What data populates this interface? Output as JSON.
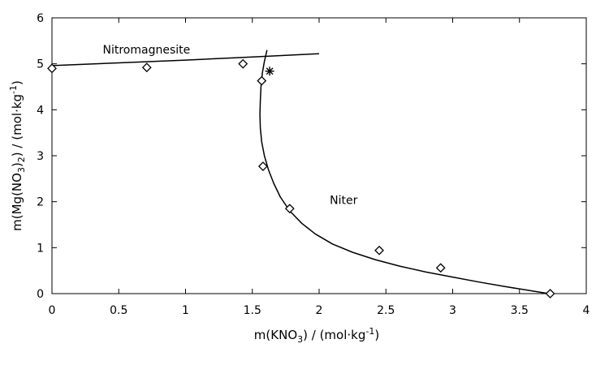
{
  "chart_data": {
    "type": "scatter",
    "title": "",
    "xlabel": {
      "main": "m(KNO",
      "sub": "3",
      "tail": ") / (mol·kg",
      "sup": "-1",
      "end": ")"
    },
    "ylabel": {
      "main": "m(Mg(NO",
      "sub": "3",
      "mid": ")",
      "sub2": "2",
      "tail": ") / (mol·kg",
      "sup": "-1",
      "end": ")"
    },
    "xlim": [
      0,
      4
    ],
    "ylim": [
      0,
      6
    ],
    "xticks": [
      "0",
      "0.5",
      "1",
      "1.5",
      "2",
      "2.5",
      "3",
      "3.5",
      "4"
    ],
    "yticks": [
      "0",
      "1",
      "2",
      "3",
      "4",
      "5",
      "6"
    ],
    "grid": false,
    "series": [
      {
        "marker": "diamond",
        "points": [
          {
            "x": 0.0,
            "y": 4.9
          },
          {
            "x": 0.71,
            "y": 4.92
          },
          {
            "x": 1.43,
            "y": 5.0
          },
          {
            "x": 1.57,
            "y": 4.63
          },
          {
            "x": 1.58,
            "y": 2.77
          },
          {
            "x": 1.78,
            "y": 1.85
          },
          {
            "x": 2.45,
            "y": 0.94
          },
          {
            "x": 2.91,
            "y": 0.56
          },
          {
            "x": 3.73,
            "y": 0.0
          }
        ]
      },
      {
        "marker": "asterisk",
        "points": [
          {
            "x": 1.63,
            "y": 4.84
          }
        ]
      },
      {
        "marker": "line",
        "name": "Nitromagnesite",
        "points": [
          {
            "x": 0.0,
            "y": 4.96
          },
          {
            "x": 0.5,
            "y": 5.02
          },
          {
            "x": 1.0,
            "y": 5.08
          },
          {
            "x": 1.5,
            "y": 5.15
          },
          {
            "x": 2.0,
            "y": 5.22
          }
        ]
      },
      {
        "marker": "line",
        "name": "Niter",
        "points": [
          {
            "x": 1.61,
            "y": 5.3
          },
          {
            "x": 1.59,
            "y": 5.05
          },
          {
            "x": 1.575,
            "y": 4.8
          },
          {
            "x": 1.565,
            "y": 4.5
          },
          {
            "x": 1.56,
            "y": 4.2
          },
          {
            "x": 1.557,
            "y": 3.9
          },
          {
            "x": 1.56,
            "y": 3.6
          },
          {
            "x": 1.57,
            "y": 3.3
          },
          {
            "x": 1.59,
            "y": 3.0
          },
          {
            "x": 1.62,
            "y": 2.7
          },
          {
            "x": 1.66,
            "y": 2.4
          },
          {
            "x": 1.71,
            "y": 2.1
          },
          {
            "x": 1.78,
            "y": 1.8
          },
          {
            "x": 1.87,
            "y": 1.53
          },
          {
            "x": 1.97,
            "y": 1.3
          },
          {
            "x": 2.1,
            "y": 1.08
          },
          {
            "x": 2.25,
            "y": 0.9
          },
          {
            "x": 2.42,
            "y": 0.74
          },
          {
            "x": 2.6,
            "y": 0.6
          },
          {
            "x": 2.8,
            "y": 0.47
          },
          {
            "x": 3.0,
            "y": 0.36
          },
          {
            "x": 3.2,
            "y": 0.25
          },
          {
            "x": 3.4,
            "y": 0.15
          },
          {
            "x": 3.55,
            "y": 0.08
          },
          {
            "x": 3.72,
            "y": 0.0
          }
        ]
      }
    ],
    "annotations": [
      {
        "text": "Nitromagnesite",
        "x": 0.38,
        "y": 5.22
      },
      {
        "text": "Niter",
        "x": 2.08,
        "y": 1.95
      }
    ]
  }
}
